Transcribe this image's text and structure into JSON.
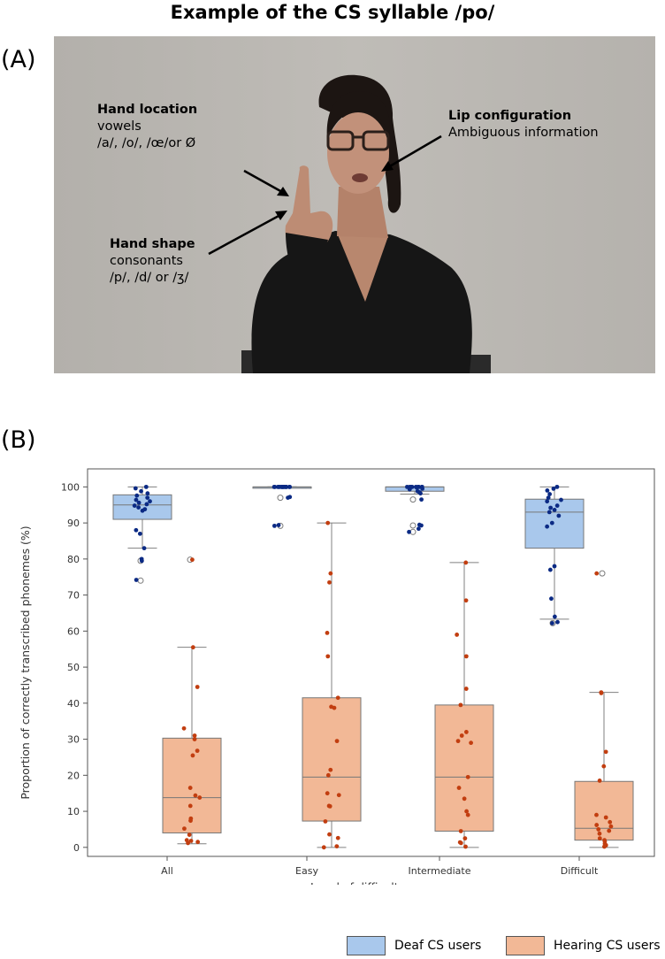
{
  "figure": {
    "title": "Example of the CS syllable /po/",
    "panel_a_label": "(A)",
    "panel_b_label": "(B)"
  },
  "annotations": {
    "hand_location": {
      "title": "Hand location",
      "line1": "vowels",
      "line2": "/a/, /o/, /œ/or Ø"
    },
    "lip_configuration": {
      "title": "Lip configuration",
      "line1": "Ambiguous information"
    },
    "hand_shape": {
      "title": "Hand shape",
      "line1": "consonants",
      "line2": "/p/, /d/ or /ʒ/"
    }
  },
  "colors": {
    "deaf_fill": "#a9c8ec",
    "deaf_point": "#0b2a84",
    "hearing_fill": "#f2b896",
    "hearing_point": "#c23e10",
    "whisker": "#808080"
  },
  "chart_data": {
    "type": "box",
    "xlabel": "Level of difficulty",
    "ylabel": "Proportion of correctly transcribed phonemes (%)",
    "ylim": [
      -2.5,
      105
    ],
    "yticks": [
      0,
      10,
      20,
      30,
      40,
      50,
      60,
      70,
      80,
      90,
      100
    ],
    "categories": [
      "All",
      "Easy",
      "Intermediate",
      "Difficult"
    ],
    "grid": false,
    "legend_position": "bottom-right",
    "series": [
      {
        "name": "Deaf CS users",
        "boxes": [
          {
            "q1": 91,
            "median": 95,
            "q3": 97.8,
            "whisker_low": 83,
            "whisker_high": 100,
            "outliers": [
              79.5,
              74
            ]
          },
          {
            "q1": 100,
            "median": 100,
            "q3": 100,
            "whisker_low": 100,
            "whisker_high": 100,
            "outliers": [
              97,
              89.2
            ]
          },
          {
            "q1": 98.8,
            "median": 100,
            "q3": 100,
            "whisker_low": 98,
            "whisker_high": 100,
            "outliers": [
              96.5,
              89.3,
              87.5
            ]
          },
          {
            "q1": 83,
            "median": 93,
            "q3": 96.6,
            "whisker_low": 63.3,
            "whisker_high": 100,
            "outliers": [
              62.2
            ]
          }
        ],
        "points": [
          [
            100,
            99.6,
            98.8,
            98.2,
            97.6,
            97,
            96.4,
            96,
            95.6,
            95.2,
            94.8,
            94.3,
            93.8,
            93.4,
            88,
            87,
            83,
            80,
            79.5,
            74.2
          ],
          [
            100,
            100,
            100,
            100,
            100,
            100,
            100,
            100,
            100,
            100,
            100,
            100,
            100,
            100,
            100,
            100,
            97.2,
            97,
            89.4,
            89.2
          ],
          [
            100,
            100,
            100,
            100,
            100,
            100,
            100,
            100,
            100,
            99.8,
            99.5,
            99.3,
            98.8,
            98.5,
            98.2,
            96.5,
            89.5,
            89.3,
            88.4,
            87.5
          ],
          [
            100,
            99.5,
            99,
            98,
            97,
            96.4,
            96,
            94.8,
            94.2,
            93.6,
            93,
            92,
            90,
            89,
            78,
            77,
            69,
            64,
            62.5,
            62.2
          ]
        ]
      },
      {
        "name": "Hearing CS users",
        "boxes": [
          {
            "q1": 4,
            "median": 13.8,
            "q3": 30.3,
            "whisker_low": 1,
            "whisker_high": 55.5,
            "outliers": [
              79.8
            ]
          },
          {
            "q1": 7.3,
            "median": 19.5,
            "q3": 41.5,
            "whisker_low": 0,
            "whisker_high": 90,
            "outliers": []
          },
          {
            "q1": 4.5,
            "median": 19.5,
            "q3": 39.5,
            "whisker_low": 0,
            "whisker_high": 79,
            "outliers": []
          },
          {
            "q1": 2,
            "median": 5.3,
            "q3": 18.3,
            "whisker_low": 0,
            "whisker_high": 43,
            "outliers": [
              76
            ]
          }
        ],
        "points": [
          [
            79.8,
            55.5,
            44.5,
            33,
            31,
            30,
            26.8,
            25.5,
            16.5,
            14.4,
            13.8,
            11.5,
            8,
            7.4,
            5.2,
            3.5,
            2,
            1.8,
            1.5,
            1.2
          ],
          [
            90,
            76,
            73.5,
            59.5,
            53,
            41.5,
            39,
            38.7,
            29.5,
            21.5,
            20,
            15,
            14.5,
            11.5,
            11.4,
            7.2,
            3.6,
            2.6,
            0.3,
            0
          ],
          [
            79,
            68.5,
            59,
            53,
            44,
            39.5,
            32,
            31,
            29.5,
            29,
            19.5,
            16.5,
            13.5,
            10,
            9,
            4.5,
            2.5,
            1.4,
            1.2,
            0.2
          ],
          [
            76,
            43,
            42.8,
            26.5,
            22.5,
            18.5,
            9,
            8.3,
            7,
            6.2,
            5.8,
            5,
            4.6,
            3.8,
            2.5,
            2,
            1.6,
            1,
            0.6,
            0.2
          ]
        ]
      }
    ]
  }
}
